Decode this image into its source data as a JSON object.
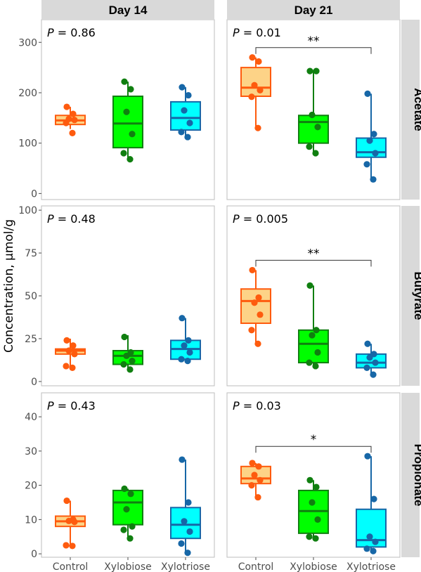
{
  "chart_data": {
    "type": "boxplot",
    "ylabel": "Concentration, μmol/g",
    "categories": [
      "Control",
      "Xylobiose",
      "Xylotriose"
    ],
    "columns": [
      "Day 14",
      "Day 21"
    ],
    "rows": [
      "Acetate",
      "Butyrate",
      "Propionate"
    ],
    "colors": {
      "Control": {
        "fill": "#fdd387",
        "stroke": "#fe5b0e"
      },
      "Xylobiose": {
        "fill": "#00fe00",
        "stroke": "#107f10"
      },
      "Xylotriose": {
        "fill": "#00ffff",
        "stroke": "#1767a7"
      }
    },
    "panels": [
      {
        "row": "Acetate",
        "column": "Day 14",
        "p_label": "P",
        "p_value": "= 0.86",
        "ylim": [
          -12,
          345
        ],
        "yticks": [
          "0",
          "100",
          "200",
          "300"
        ],
        "significance": null,
        "boxes": [
          {
            "group": "Control",
            "min": 128,
            "q1": 137,
            "median": 145,
            "q3": 155,
            "max": 172,
            "points": [
              172,
              158,
              148,
              146,
              140,
              120
            ]
          },
          {
            "group": "Xylobiose",
            "min": 68,
            "q1": 91,
            "median": 139,
            "q3": 193,
            "max": 222,
            "points": [
              222,
              207,
              162,
              118,
              80,
              68
            ]
          },
          {
            "group": "Xylotriose",
            "min": 112,
            "q1": 126,
            "median": 150,
            "q3": 182,
            "max": 211,
            "points": [
              211,
              195,
              165,
              140,
              122,
              112
            ]
          }
        ]
      },
      {
        "row": "Acetate",
        "column": "Day 21",
        "p_label": "P",
        "p_value": "= 0.01",
        "ylim": [
          -12,
          345
        ],
        "yticks": [
          "0",
          "100",
          "200",
          "300"
        ],
        "significance": "**",
        "boxes": [
          {
            "group": "Control",
            "min": 130,
            "q1": 193,
            "median": 210,
            "q3": 250,
            "max": 270,
            "points": [
              270,
              262,
              215,
              205,
              192,
              130
            ]
          },
          {
            "group": "Xylobiose",
            "min": 80,
            "q1": 100,
            "median": 142,
            "q3": 155,
            "max": 243,
            "points": [
              243,
              243,
              156,
              132,
              93,
              80
            ]
          },
          {
            "group": "Xylotriose",
            "min": 28,
            "q1": 72,
            "median": 82,
            "q3": 110,
            "max": 198,
            "points": [
              198,
              118,
              105,
              80,
              58,
              28
            ]
          }
        ]
      },
      {
        "row": "Butyrate",
        "column": "Day 14",
        "p_label": "P",
        "p_value": "= 0.48",
        "ylim": [
          -2.5,
          102.5
        ],
        "yticks": [
          "0",
          "25",
          "50",
          "75",
          "100"
        ],
        "significance": null,
        "boxes": [
          {
            "group": "Control",
            "min": 8,
            "q1": 16,
            "median": 18,
            "q3": 19,
            "max": 25,
            "points": [
              24,
              21,
              18,
              16,
              9,
              8
            ]
          },
          {
            "group": "Xylobiose",
            "min": 6,
            "q1": 10,
            "median": 15,
            "q3": 18,
            "max": 27,
            "points": [
              26,
              17,
              15,
              12,
              10,
              7
            ]
          },
          {
            "group": "Xylotriose",
            "min": 12,
            "q1": 13,
            "median": 19,
            "q3": 24,
            "max": 37,
            "points": [
              37,
              24,
              21,
              17,
              13,
              12
            ]
          }
        ]
      },
      {
        "row": "Butyrate",
        "column": "Day 21",
        "p_label": "P",
        "p_value": "= 0.005",
        "ylim": [
          -2.5,
          102.5
        ],
        "yticks": [
          "0",
          "25",
          "50",
          "75",
          "100"
        ],
        "significance": "**",
        "boxes": [
          {
            "group": "Control",
            "min": 22,
            "q1": 34,
            "median": 47,
            "q3": 54,
            "max": 65,
            "points": [
              65,
              49,
              46,
              39,
              30,
              22
            ]
          },
          {
            "group": "Xylobiose",
            "min": 8,
            "q1": 11,
            "median": 22,
            "q3": 30,
            "max": 56,
            "points": [
              56,
              30,
              27,
              17,
              11,
              9
            ]
          },
          {
            "group": "Xylotriose",
            "min": 4,
            "q1": 8,
            "median": 11,
            "q3": 16,
            "max": 22,
            "points": [
              22,
              16,
              14,
              11,
              8,
              4
            ]
          }
        ]
      },
      {
        "row": "Propionate",
        "column": "Day 14",
        "p_label": "P",
        "p_value": "= 0.43",
        "ylim": [
          -1,
          47
        ],
        "yticks": [
          "0",
          "10",
          "20",
          "30",
          "40"
        ],
        "significance": null,
        "boxes": [
          {
            "group": "Control",
            "min": 2,
            "q1": 8,
            "median": 9.5,
            "q3": 11,
            "max": 15.5,
            "points": [
              15.5,
              10,
              9.6,
              9.3,
              2.5,
              2.3
            ]
          },
          {
            "group": "Xylobiose",
            "min": 4,
            "q1": 8.5,
            "median": 15,
            "q3": 18.5,
            "max": 19,
            "points": [
              19,
              17.5,
              13,
              8,
              7,
              4.5
            ]
          },
          {
            "group": "Xylotriose",
            "min": 0,
            "q1": 4.5,
            "median": 8.5,
            "q3": 13.5,
            "max": 27.5,
            "points": [
              27.5,
              15,
              9.5,
              6.5,
              3,
              0.3
            ]
          }
        ]
      },
      {
        "row": "Propionate",
        "column": "Day 21",
        "p_label": "P",
        "p_value": "= 0.03",
        "ylim": [
          -1,
          47
        ],
        "yticks": [
          "0",
          "10",
          "20",
          "30",
          "40"
        ],
        "significance": "*",
        "boxes": [
          {
            "group": "Control",
            "min": 16.5,
            "q1": 20.5,
            "median": 22,
            "q3": 25.5,
            "max": 26.5,
            "points": [
              26.5,
              25.5,
              23,
              21.5,
              20,
              16.5
            ]
          },
          {
            "group": "Xylobiose",
            "min": 4.5,
            "q1": 6,
            "median": 12.5,
            "q3": 18.5,
            "max": 21.5,
            "points": [
              21.5,
              19.5,
              15,
              10,
              5,
              4.5
            ]
          },
          {
            "group": "Xylotriose",
            "min": 0.5,
            "q1": 2,
            "median": 4,
            "q3": 13,
            "max": 28.5,
            "points": [
              28.5,
              16,
              5,
              3.5,
              1.5,
              0.8
            ]
          }
        ]
      }
    ]
  }
}
